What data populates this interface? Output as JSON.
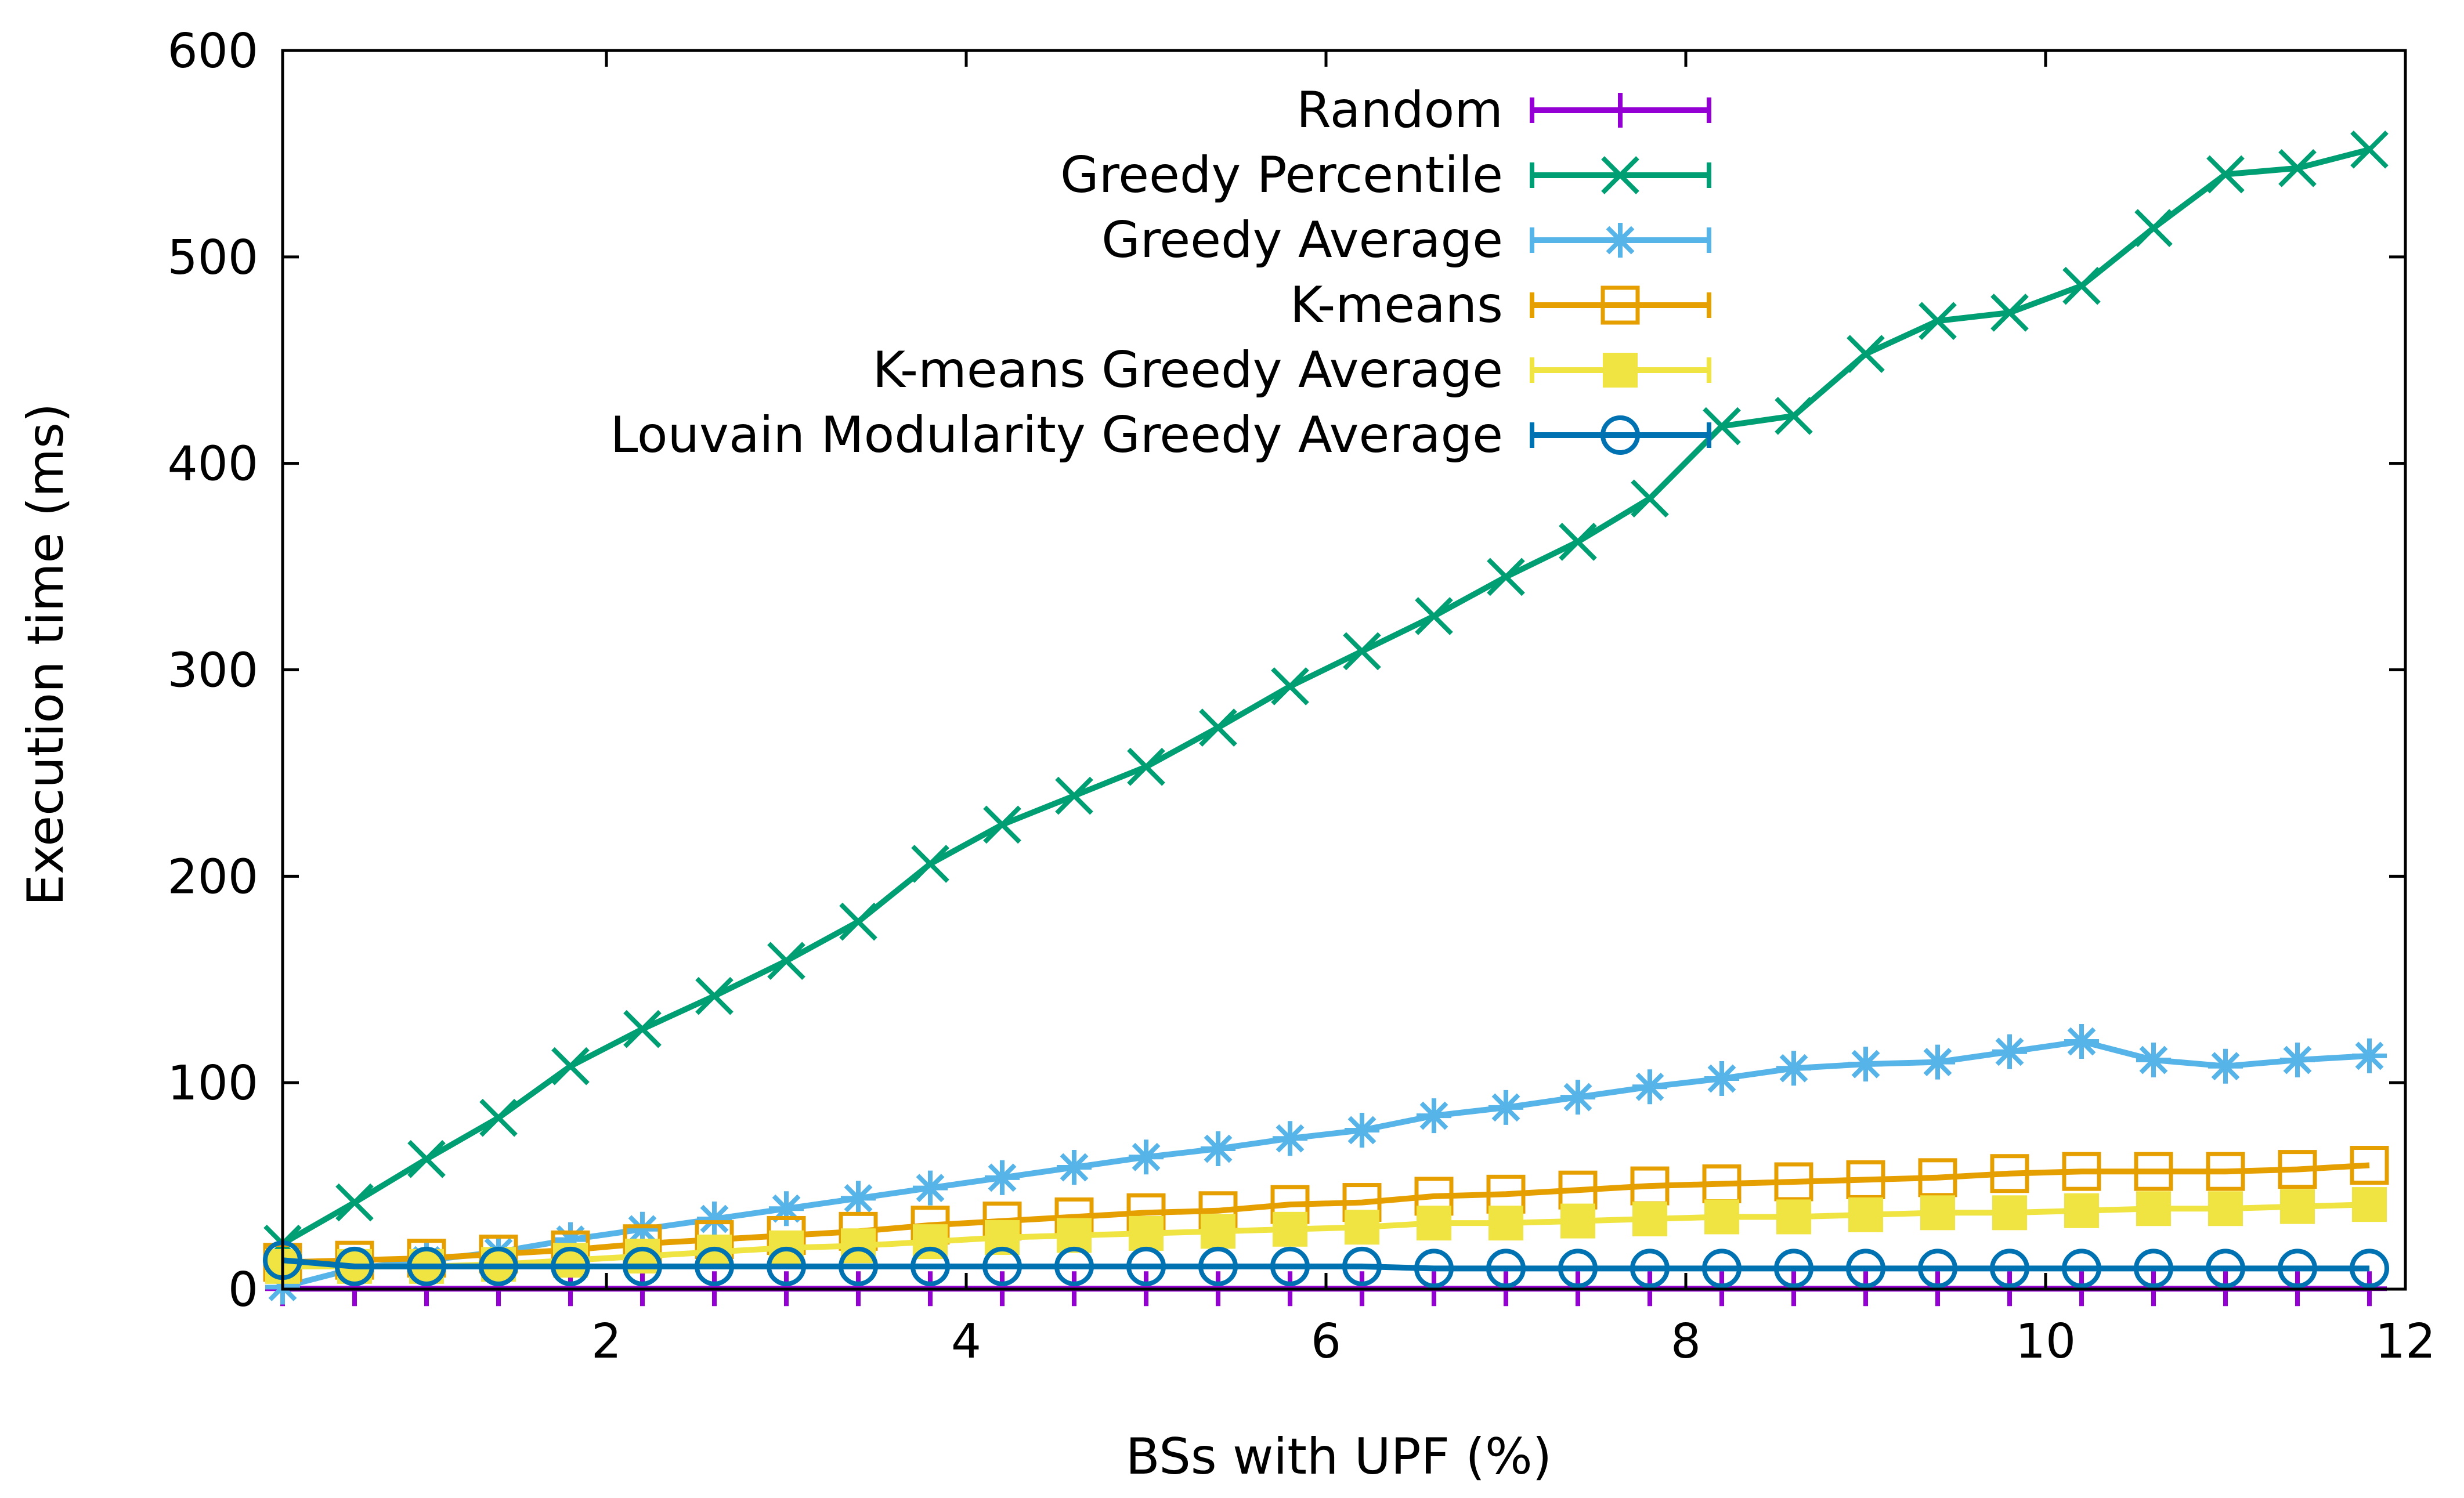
{
  "chart_data": {
    "type": "line",
    "xlabel": "BSs with UPF (%)",
    "ylabel": "Execution time (ms)",
    "xlim": [
      0.2,
      12
    ],
    "ylim": [
      0,
      600
    ],
    "xticks": [
      2,
      4,
      6,
      8,
      10,
      12
    ],
    "yticks": [
      0,
      100,
      200,
      300,
      400,
      500,
      600
    ],
    "grid": false,
    "legend_position": "top-right",
    "x": [
      0.2,
      0.6,
      1.0,
      1.4,
      1.8,
      2.2,
      2.6,
      3.0,
      3.4,
      3.8,
      4.2,
      4.6,
      5.0,
      5.4,
      5.8,
      6.2,
      6.6,
      7.0,
      7.4,
      7.8,
      8.2,
      8.6,
      9.0,
      9.4,
      9.8,
      10.2,
      10.6,
      11.0,
      11.4,
      11.8
    ],
    "series": [
      {
        "name": "Random",
        "color": "#9400d3",
        "marker": "plus",
        "values": [
          0.2,
          0.2,
          0.2,
          0.2,
          0.2,
          0.2,
          0.2,
          0.2,
          0.2,
          0.2,
          0.2,
          0.2,
          0.2,
          0.2,
          0.2,
          0.2,
          0.2,
          0.2,
          0.2,
          0.2,
          0.2,
          0.2,
          0.2,
          0.2,
          0.2,
          0.2,
          0.2,
          0.2,
          0.2,
          0.2
        ]
      },
      {
        "name": "Greedy Percentile",
        "color": "#009e73",
        "marker": "cross",
        "values": [
          22,
          42,
          63,
          83,
          108,
          126,
          142,
          159,
          178,
          206,
          225,
          239,
          253,
          272,
          292,
          309,
          326,
          345,
          362,
          383,
          418,
          423,
          453,
          469,
          473,
          486,
          514,
          540,
          543,
          552
        ]
      },
      {
        "name": "Greedy Average",
        "color": "#56b4e9",
        "marker": "star",
        "values": [
          1,
          10,
          14,
          18,
          24,
          29,
          34,
          39,
          44,
          49,
          54,
          59,
          64,
          68,
          73,
          77,
          84,
          88,
          93,
          98,
          102,
          107,
          109,
          110,
          115,
          120,
          111,
          108,
          111,
          113
        ]
      },
      {
        "name": "K-means",
        "color": "#e69f00",
        "marker": "open-square",
        "values": [
          13,
          14,
          15,
          17,
          19,
          22,
          24,
          26,
          28,
          31,
          33,
          35,
          37,
          38,
          41,
          42,
          45,
          46,
          48,
          50,
          51,
          52,
          53,
          54,
          56,
          57,
          57,
          57,
          58,
          60
        ]
      },
      {
        "name": "K-means Greedy Average",
        "color": "#f0e442",
        "marker": "filled-square",
        "values": [
          11,
          11,
          11,
          12,
          14,
          16,
          18,
          20,
          21,
          23,
          25,
          26,
          27,
          28,
          29,
          30,
          32,
          32,
          33,
          34,
          35,
          35,
          36,
          37,
          37,
          38,
          39,
          39,
          40,
          41
        ]
      },
      {
        "name": "Louvain Modularity Greedy Average",
        "color": "#0072b2",
        "marker": "open-circle",
        "values": [
          14,
          11,
          11,
          11,
          11,
          11,
          11,
          11,
          11,
          11,
          11,
          11,
          11,
          11,
          11,
          11,
          10,
          10,
          10,
          10,
          10,
          10,
          10,
          10,
          10,
          10,
          10,
          10,
          10,
          10
        ]
      }
    ]
  }
}
